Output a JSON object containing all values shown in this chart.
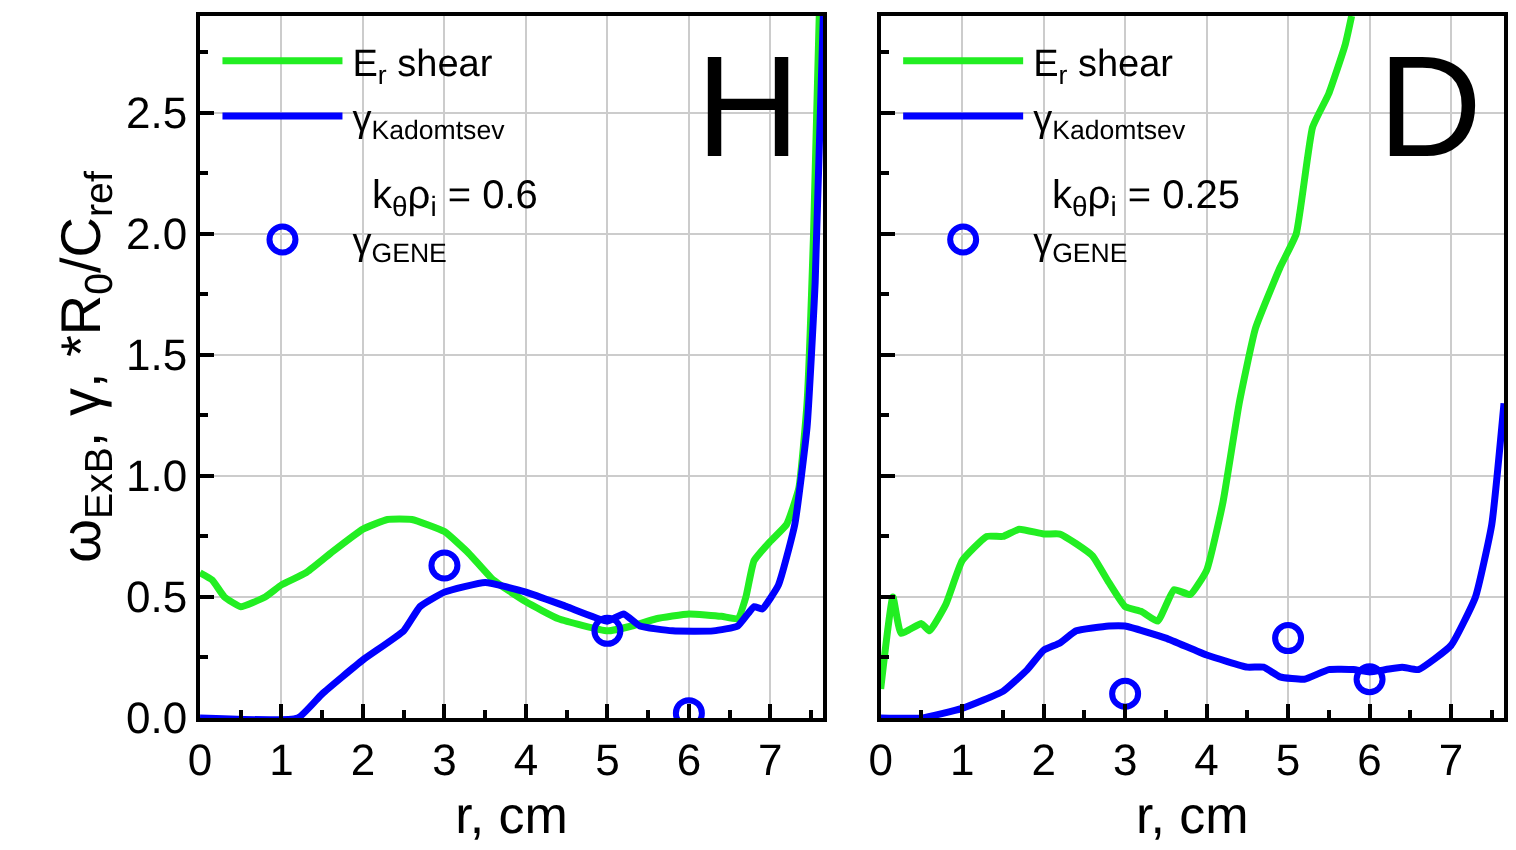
{
  "chart_data": [
    {
      "type": "line",
      "xlabel": "r, cm",
      "ylabel": "ω$_{ExB}$, γ, *R$_{0}$/C$_{ref}$",
      "annotations": [
        "H",
        "k$_{θ}$ρ$_{i}$ = 0.6"
      ],
      "xlim": [
        0,
        7.65
      ],
      "xticks": [
        0,
        1,
        2,
        3,
        4,
        5,
        6,
        7
      ],
      "ylim": [
        0,
        2.9
      ],
      "yticks": [
        {
          "value": 0,
          "label": "0.0"
        },
        {
          "value": 0.5,
          "label": "0.5"
        },
        {
          "value": 1,
          "label": "1.0"
        },
        {
          "value": 1.5,
          "label": "1.5"
        },
        {
          "value": 2,
          "label": "2.0"
        },
        {
          "value": 2.5,
          "label": "2.5"
        }
      ],
      "grid": true,
      "legend": "top left",
      "series": [
        {
          "name": "E$_{r}$ shear",
          "color": "#22ee22",
          "x": [
            0,
            0.15,
            0.3,
            0.5,
            0.8,
            1,
            1.3,
            1.6,
            2,
            2.3,
            2.6,
            3,
            3.3,
            3.6,
            4,
            4.4,
            5,
            5.3,
            5.6,
            6,
            6.4,
            6.6,
            6.7,
            6.8,
            7,
            7.2,
            7.35,
            7.45,
            7.53,
            7.6
          ],
          "values": [
            0.6,
            0.57,
            0.5,
            0.46,
            0.5,
            0.55,
            0.6,
            0.68,
            0.78,
            0.82,
            0.82,
            0.77,
            0.68,
            0.57,
            0.48,
            0.41,
            0.36,
            0.38,
            0.41,
            0.43,
            0.42,
            0.41,
            0.5,
            0.65,
            0.73,
            0.8,
            0.95,
            1.3,
            2.0,
            2.9
          ]
        },
        {
          "name": "γ$_{Kadomtsev}$",
          "color": "#0000ff",
          "x": [
            0,
            1.2,
            1.5,
            2,
            2.5,
            2.7,
            3,
            3.5,
            4,
            4.5,
            5,
            5.2,
            5.4,
            5.8,
            6.3,
            6.6,
            6.8,
            6.9,
            7.1,
            7.3,
            7.45,
            7.55,
            7.65
          ],
          "values": [
            0,
            0,
            0.1,
            0.24,
            0.36,
            0.46,
            0.52,
            0.56,
            0.52,
            0.46,
            0.4,
            0.43,
            0.38,
            0.36,
            0.36,
            0.38,
            0.46,
            0.45,
            0.55,
            0.8,
            1.2,
            1.8,
            2.9
          ]
        },
        {
          "name": "γ$_{GENE}$",
          "type": "scatter",
          "marker": "circle",
          "color": "#0000ff",
          "x": [
            3,
            5,
            6
          ],
          "values": [
            0.63,
            0.36,
            0.02
          ]
        }
      ]
    },
    {
      "type": "line",
      "xlabel": "r, cm",
      "annotations": [
        "D",
        "k$_{θ}$ρ$_{i}$ = 0.25"
      ],
      "xlim": [
        0,
        7.65
      ],
      "xticks": [
        0,
        1,
        2,
        3,
        4,
        5,
        6,
        7
      ],
      "ylim": [
        0,
        2.9
      ],
      "grid": true,
      "legend": "top left",
      "tick_labels": "x",
      "yticks": [
        {
          "value": 0,
          "label": null
        },
        {
          "value": 0.5,
          "label": null
        },
        {
          "value": 1,
          "label": null
        },
        {
          "value": 1.5,
          "label": null
        },
        {
          "value": 2,
          "label": null
        },
        {
          "value": 2.5,
          "label": null
        }
      ],
      "series": [
        {
          "name": "E$_{r}$ shear",
          "color": "#22ee22",
          "x": [
            0,
            0.15,
            0.25,
            0.5,
            0.6,
            0.8,
            1,
            1.3,
            1.5,
            1.7,
            2,
            2.2,
            2.4,
            2.6,
            2.8,
            3,
            3.2,
            3.4,
            3.6,
            3.8,
            4,
            4.2,
            4.4,
            4.6,
            4.9,
            5.1,
            5.3,
            5.5,
            5.7,
            5.78
          ],
          "values": [
            0.12,
            0.5,
            0.35,
            0.39,
            0.36,
            0.47,
            0.65,
            0.75,
            0.75,
            0.78,
            0.76,
            0.76,
            0.72,
            0.67,
            0.56,
            0.46,
            0.44,
            0.4,
            0.53,
            0.51,
            0.61,
            0.89,
            1.3,
            1.61,
            1.86,
            2.0,
            2.44,
            2.58,
            2.78,
            2.9
          ]
        },
        {
          "name": "γ$_{Kadomtsev}$",
          "color": "#0000ff",
          "x": [
            0,
            0.5,
            1,
            1.5,
            1.8,
            2,
            2.2,
            2.4,
            2.8,
            3,
            3.5,
            4,
            4.5,
            4.7,
            4.9,
            5.2,
            5.5,
            5.8,
            6,
            6.2,
            6.4,
            6.6,
            7,
            7.3,
            7.5,
            7.65
          ],
          "values": [
            0,
            0,
            0.04,
            0.11,
            0.2,
            0.28,
            0.31,
            0.36,
            0.38,
            0.38,
            0.33,
            0.26,
            0.21,
            0.21,
            0.17,
            0.16,
            0.2,
            0.2,
            0.19,
            0.2,
            0.21,
            0.2,
            0.3,
            0.5,
            0.8,
            1.3
          ]
        },
        {
          "name": "γ$_{GENE}$",
          "type": "scatter",
          "marker": "circle",
          "color": "#0000ff",
          "x": [
            3,
            5,
            6
          ],
          "values": [
            0.1,
            0.33,
            0.16
          ]
        }
      ]
    }
  ]
}
